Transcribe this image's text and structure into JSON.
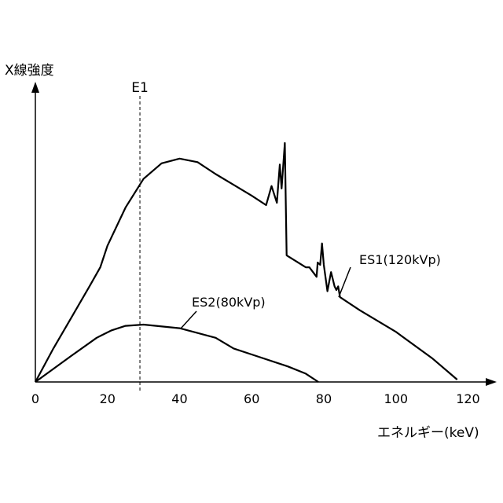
{
  "chart_data": {
    "type": "line",
    "title": "",
    "ylabel": "X線強度",
    "xlabel": "エネルギー(keV)",
    "xlim": [
      0,
      126
    ],
    "ylim": [
      0,
      100
    ],
    "x_ticks": [
      0,
      20,
      40,
      60,
      80,
      100,
      120
    ],
    "x_tick_labels": [
      "0",
      "20",
      "40",
      "60",
      "80",
      "100",
      "120"
    ],
    "y_ticks_shown": false,
    "grid": false,
    "legend": "none",
    "series": [
      {
        "name": "ES1(120kVp)",
        "label_text": "ES1(120kVp)",
        "label_anchor": [
          87,
          32
        ],
        "label_data_x": 87,
        "label_data_y": 32,
        "points": [
          [
            0,
            0
          ],
          [
            5,
            14
          ],
          [
            10,
            27
          ],
          [
            15,
            40
          ],
          [
            18,
            48
          ],
          [
            20,
            57
          ],
          [
            25,
            73
          ],
          [
            30,
            85
          ],
          [
            35,
            91.5
          ],
          [
            40,
            93.5
          ],
          [
            45,
            92
          ],
          [
            50,
            87
          ],
          [
            55,
            82.5
          ],
          [
            60,
            78
          ],
          [
            64,
            74
          ],
          [
            65.5,
            82
          ],
          [
            67,
            75
          ],
          [
            67.8,
            91
          ],
          [
            68.3,
            81
          ],
          [
            69.2,
            100
          ],
          [
            69.7,
            53
          ],
          [
            75,
            48
          ],
          [
            76,
            48
          ],
          [
            78,
            44
          ],
          [
            78.3,
            50
          ],
          [
            79,
            49
          ],
          [
            79.5,
            58
          ],
          [
            80,
            49
          ],
          [
            81,
            38
          ],
          [
            82,
            46
          ],
          [
            83,
            40
          ],
          [
            83.5,
            38.5
          ],
          [
            84,
            40
          ],
          [
            84.5,
            35.5
          ],
          [
            85,
            35
          ],
          [
            90,
            30
          ],
          [
            100,
            21
          ],
          [
            110,
            10
          ],
          [
            117,
            1
          ]
        ]
      },
      {
        "name": "ES2(80kVp)",
        "label_text": "ES2(80kVp)",
        "label_anchor": [
          42,
          24
        ],
        "label_data_x": 42,
        "label_data_y": 24,
        "points": [
          [
            0,
            0
          ],
          [
            10,
            11
          ],
          [
            17,
            18.5
          ],
          [
            21,
            21.5
          ],
          [
            25,
            23.5
          ],
          [
            30,
            24
          ],
          [
            40,
            22.5
          ],
          [
            50,
            18.5
          ],
          [
            55,
            14
          ],
          [
            60,
            11.5
          ],
          [
            70,
            6.5
          ],
          [
            75,
            3.5
          ],
          [
            78.5,
            0
          ]
        ]
      }
    ],
    "annotations": [
      {
        "type": "vertical-dashed-line",
        "label": "E1",
        "x": 29
      }
    ]
  }
}
